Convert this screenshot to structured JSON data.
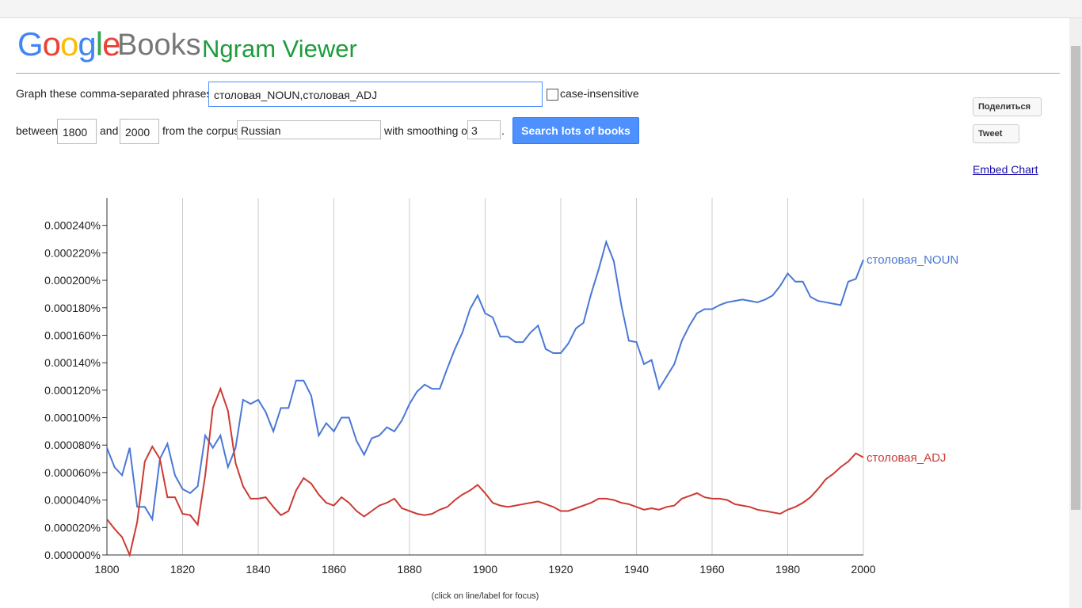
{
  "header": {
    "logo": "Google",
    "books": "Books",
    "product": "Ngram Viewer"
  },
  "form": {
    "phrases_label": "Graph these comma-separated phrases:",
    "phrases": "столовая_NOUN,столовая_ADJ",
    "case_label": "case-insensitive",
    "between": "between",
    "start": "1800",
    "and": "and",
    "end": "2000",
    "corpus_label": "from the corpus",
    "corpus": "Russian",
    "smoothing_label": "with smoothing of",
    "smoothing": "3",
    "period": ".",
    "search": "Search lots of books"
  },
  "social": {
    "share": "Поделиться",
    "tweet": "Tweet",
    "embed": "Embed Chart"
  },
  "chart_data": {
    "type": "line",
    "note": "(click on line/label for focus)",
    "grid": "x",
    "xlim": [
      1800,
      2000
    ],
    "xticks": [
      1800,
      1820,
      1840,
      1860,
      1880,
      1900,
      1920,
      1940,
      1960,
      1980,
      2000
    ],
    "ylim": [
      0,
      0.00026
    ],
    "yticks": [
      {
        "value": 0,
        "label": "0.000000%"
      },
      {
        "value": 2e-05,
        "label": "0.000020%"
      },
      {
        "value": 4e-05,
        "label": "0.000040%"
      },
      {
        "value": 6e-05,
        "label": "0.000060%"
      },
      {
        "value": 8e-05,
        "label": "0.000080%"
      },
      {
        "value": 0.0001,
        "label": "0.000100%"
      },
      {
        "value": 0.00012,
        "label": "0.000120%"
      },
      {
        "value": 0.00014,
        "label": "0.000140%"
      },
      {
        "value": 0.00016,
        "label": "0.000160%"
      },
      {
        "value": 0.00018,
        "label": "0.000180%"
      },
      {
        "value": 0.0002,
        "label": "0.000200%"
      },
      {
        "value": 0.00022,
        "label": "0.000220%"
      },
      {
        "value": 0.00024,
        "label": "0.000240%"
      }
    ],
    "x": [
      1800,
      1802,
      1804,
      1806,
      1808,
      1810,
      1812,
      1814,
      1816,
      1818,
      1820,
      1822,
      1824,
      1826,
      1828,
      1830,
      1832,
      1834,
      1836,
      1838,
      1840,
      1842,
      1844,
      1846,
      1848,
      1850,
      1852,
      1854,
      1856,
      1858,
      1860,
      1862,
      1864,
      1866,
      1868,
      1870,
      1872,
      1874,
      1876,
      1878,
      1880,
      1882,
      1884,
      1886,
      1888,
      1890,
      1892,
      1894,
      1896,
      1898,
      1900,
      1902,
      1904,
      1906,
      1908,
      1910,
      1912,
      1914,
      1916,
      1918,
      1920,
      1922,
      1924,
      1926,
      1928,
      1930,
      1932,
      1934,
      1936,
      1938,
      1940,
      1942,
      1944,
      1946,
      1948,
      1950,
      1952,
      1954,
      1956,
      1958,
      1960,
      1962,
      1964,
      1966,
      1968,
      1970,
      1972,
      1974,
      1976,
      1978,
      1980,
      1982,
      1984,
      1986,
      1988,
      1990,
      1992,
      1994,
      1996,
      1998,
      2000
    ],
    "series": [
      {
        "name": "столовая_NOUN",
        "color": "#4a78d6",
        "values": [
          7.8e-05,
          6.4e-05,
          5.8e-05,
          7.8e-05,
          3.5e-05,
          3.5e-05,
          2.6e-05,
          7e-05,
          8.1e-05,
          5.8e-05,
          4.8e-05,
          4.5e-05,
          5e-05,
          8.7e-05,
          7.8e-05,
          8.7e-05,
          6.4e-05,
          7.8e-05,
          0.000113,
          0.00011,
          0.000113,
          0.000104,
          9e-05,
          0.000107,
          0.000107,
          0.000127,
          0.000127,
          0.000116,
          8.7e-05,
          9.6e-05,
          9e-05,
          0.0001,
          0.0001,
          8.3e-05,
          7.3e-05,
          8.5e-05,
          8.7e-05,
          9.3e-05,
          9e-05,
          9.8e-05,
          0.00011,
          0.000119,
          0.000124,
          0.000121,
          0.000121,
          0.000136,
          0.00015,
          0.000162,
          0.000179,
          0.000189,
          0.000176,
          0.000173,
          0.000159,
          0.000159,
          0.000155,
          0.000155,
          0.000162,
          0.000167,
          0.00015,
          0.000147,
          0.000147,
          0.000154,
          0.000165,
          0.000169,
          0.00019,
          0.000208,
          0.000228,
          0.000214,
          0.000182,
          0.000156,
          0.000155,
          0.000139,
          0.000142,
          0.000121,
          0.00013,
          0.000139,
          0.000156,
          0.000167,
          0.000176,
          0.000179,
          0.000179,
          0.000182,
          0.000184,
          0.000185,
          0.000186,
          0.000185,
          0.000184,
          0.000186,
          0.000189,
          0.000196,
          0.000205,
          0.000199,
          0.000199,
          0.000188,
          0.000185,
          0.000184,
          0.000183,
          0.000182,
          0.000199,
          0.000201,
          0.000215
        ]
      },
      {
        "name": "столовая_ADJ",
        "color": "#cc3a33",
        "values": [
          2.6e-05,
          1.9e-05,
          1.3e-05,
          0,
          2.4e-05,
          6.8e-05,
          7.9e-05,
          7e-05,
          4.2e-05,
          4.2e-05,
          3e-05,
          2.9e-05,
          2.2e-05,
          5.8e-05,
          0.000107,
          0.000121,
          0.000105,
          6.7e-05,
          5e-05,
          4.1e-05,
          4.1e-05,
          4.2e-05,
          3.5e-05,
          2.9e-05,
          3.2e-05,
          4.7e-05,
          5.6e-05,
          5.2e-05,
          4.4e-05,
          3.8e-05,
          3.6e-05,
          4.2e-05,
          3.8e-05,
          3.2e-05,
          2.8e-05,
          3.2e-05,
          3.6e-05,
          3.8e-05,
          4.1e-05,
          3.4e-05,
          3.2e-05,
          3e-05,
          2.9e-05,
          3e-05,
          3.3e-05,
          3.5e-05,
          4e-05,
          4.4e-05,
          4.7e-05,
          5.1e-05,
          4.5e-05,
          3.8e-05,
          3.6e-05,
          3.5e-05,
          3.6e-05,
          3.7e-05,
          3.8e-05,
          3.9e-05,
          3.7e-05,
          3.5e-05,
          3.2e-05,
          3.2e-05,
          3.4e-05,
          3.6e-05,
          3.8e-05,
          4.1e-05,
          4.1e-05,
          4e-05,
          3.8e-05,
          3.7e-05,
          3.5e-05,
          3.3e-05,
          3.4e-05,
          3.3e-05,
          3.5e-05,
          3.6e-05,
          4.1e-05,
          4.3e-05,
          4.5e-05,
          4.2e-05,
          4.1e-05,
          4.1e-05,
          4e-05,
          3.7e-05,
          3.6e-05,
          3.5e-05,
          3.3e-05,
          3.2e-05,
          3.1e-05,
          3e-05,
          3.3e-05,
          3.5e-05,
          3.8e-05,
          4.2e-05,
          4.8e-05,
          5.5e-05,
          5.9e-05,
          6.4e-05,
          6.8e-05,
          7.4e-05,
          7.1e-05
        ]
      }
    ]
  }
}
